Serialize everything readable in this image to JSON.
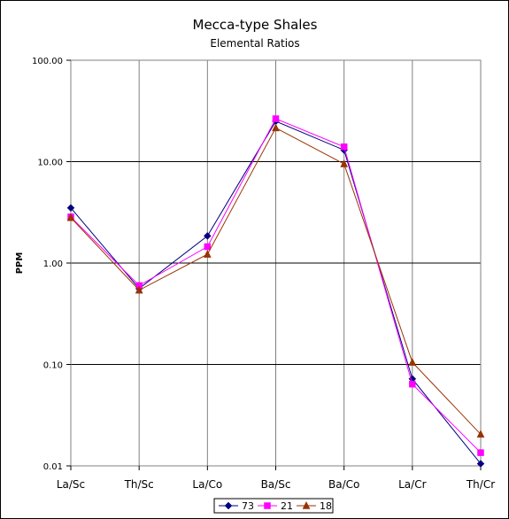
{
  "chart_data": {
    "type": "line",
    "title": "Mecca-type Shales",
    "subtitle": "Elemental Ratios",
    "ylabel": "PPM",
    "xlabel": "",
    "yscale": "log",
    "ylim": [
      0.01,
      100
    ],
    "yticks": [
      {
        "value": 100,
        "label": "100.00"
      },
      {
        "value": 10,
        "label": "10.00"
      },
      {
        "value": 1,
        "label": "1.00"
      },
      {
        "value": 0.1,
        "label": "0.10"
      },
      {
        "value": 0.01,
        "label": "0.01"
      }
    ],
    "categories": [
      "La/Sc",
      "Th/Sc",
      "La/Co",
      "Ba/Sc",
      "Ba/Co",
      "La/Cr",
      "Th/Cr"
    ],
    "grid": {
      "horizontal": true,
      "vertical": true
    },
    "legend_position": "bottom",
    "series": [
      {
        "name": "73",
        "color": "#000080",
        "marker": "diamond",
        "values": [
          3.5,
          0.56,
          1.85,
          25.0,
          13.0,
          0.072,
          0.0105
        ]
      },
      {
        "name": "21",
        "color": "#FF00FF",
        "marker": "square",
        "values": [
          2.85,
          0.6,
          1.45,
          26.5,
          14.0,
          0.064,
          0.0135
        ]
      },
      {
        "name": "18",
        "color": "#993300",
        "marker": "triangle",
        "values": [
          2.8,
          0.54,
          1.22,
          21.5,
          9.5,
          0.105,
          0.0205
        ]
      }
    ]
  }
}
